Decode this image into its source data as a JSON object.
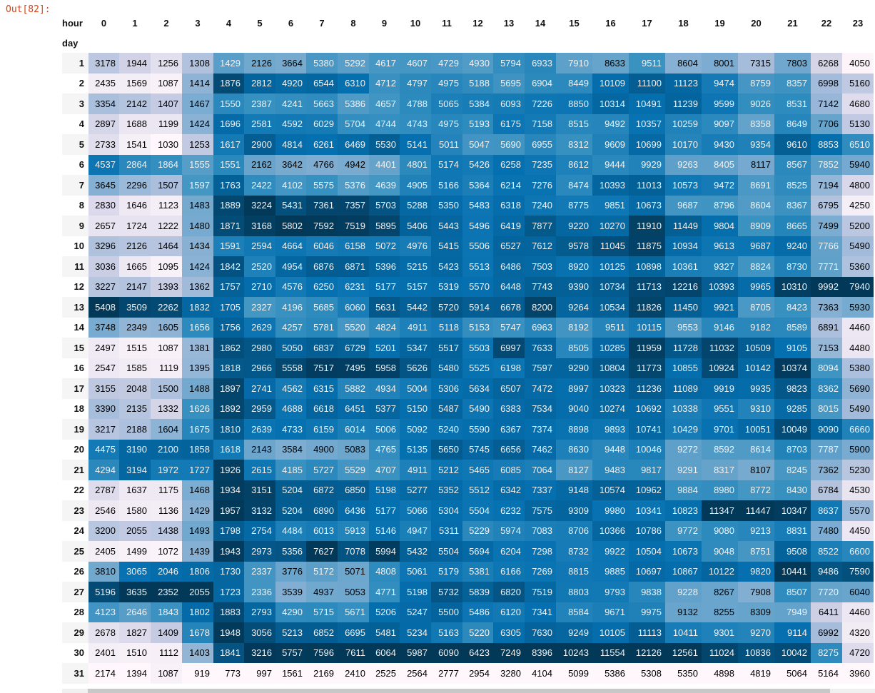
{
  "prompt": "Out[82]:",
  "columns_name": "hour",
  "index_name": "day",
  "columns": [
    "0",
    "1",
    "2",
    "3",
    "4",
    "5",
    "6",
    "7",
    "8",
    "9",
    "10",
    "11",
    "12",
    "13",
    "14",
    "15",
    "16",
    "17",
    "18",
    "19",
    "20",
    "21",
    "22",
    "23"
  ],
  "rows": [
    {
      "day": "1",
      "values": [
        3178,
        1944,
        1256,
        1308,
        1429,
        2126,
        3664,
        5380,
        5292,
        4617,
        4607,
        4729,
        4930,
        5794,
        6933,
        7910,
        8633,
        9511,
        8604,
        8001,
        7315,
        7803,
        6268,
        4050
      ]
    },
    {
      "day": "2",
      "values": [
        2435,
        1569,
        1087,
        1414,
        1876,
        2812,
        4920,
        6544,
        6310,
        4712,
        4797,
        4975,
        5188,
        5695,
        6904,
        8449,
        10109,
        11100,
        11123,
        9474,
        8759,
        8357,
        6998,
        5160
      ]
    },
    {
      "day": "3",
      "values": [
        3354,
        2142,
        1407,
        1467,
        1550,
        2387,
        4241,
        5663,
        5386,
        4657,
        4788,
        5065,
        5384,
        6093,
        7226,
        8850,
        10314,
        10491,
        11239,
        9599,
        9026,
        8531,
        7142,
        4680
      ]
    },
    {
      "day": "4",
      "values": [
        2897,
        1688,
        1199,
        1424,
        1696,
        2581,
        4592,
        6029,
        5704,
        4744,
        4743,
        4975,
        5193,
        6175,
        7158,
        8515,
        9492,
        10357,
        10259,
        9097,
        8358,
        8649,
        7706,
        5130
      ]
    },
    {
      "day": "5",
      "values": [
        2733,
        1541,
        1030,
        1253,
        1617,
        2900,
        4814,
        6261,
        6469,
        5530,
        5141,
        5011,
        5047,
        5690,
        6955,
        8312,
        9609,
        10699,
        10170,
        9430,
        9354,
        9610,
        8853,
        6510
      ]
    },
    {
      "day": "6",
      "values": [
        4537,
        2864,
        1864,
        1555,
        1551,
        2162,
        3642,
        4766,
        4942,
        4401,
        4801,
        5174,
        5426,
        6258,
        7235,
        8612,
        9444,
        9929,
        9263,
        8405,
        8117,
        8567,
        7852,
        5940
      ]
    },
    {
      "day": "7",
      "values": [
        3645,
        2296,
        1507,
        1597,
        1763,
        2422,
        4102,
        5575,
        5376,
        4639,
        4905,
        5166,
        5364,
        6214,
        7276,
        8474,
        10393,
        11013,
        10573,
        9472,
        8691,
        8525,
        7194,
        4800
      ]
    },
    {
      "day": "8",
      "values": [
        2830,
        1646,
        1123,
        1483,
        1889,
        3224,
        5431,
        7361,
        7357,
        5703,
        5288,
        5350,
        5483,
        6318,
        7240,
        8775,
        9851,
        10673,
        9687,
        8796,
        8604,
        8367,
        6795,
        4250
      ]
    },
    {
      "day": "9",
      "values": [
        2657,
        1724,
        1222,
        1480,
        1871,
        3168,
        5802,
        7592,
        7519,
        5895,
        5406,
        5443,
        5496,
        6419,
        7877,
        9220,
        10270,
        11910,
        11449,
        9804,
        8909,
        8665,
        7499,
        5200
      ]
    },
    {
      "day": "10",
      "values": [
        3296,
        2126,
        1464,
        1434,
        1591,
        2594,
        4664,
        6046,
        6158,
        5072,
        4976,
        5415,
        5506,
        6527,
        7612,
        9578,
        11045,
        11875,
        10934,
        9613,
        9687,
        9240,
        7766,
        5490
      ]
    },
    {
      "day": "11",
      "values": [
        3036,
        1665,
        1095,
        1424,
        1842,
        2520,
        4954,
        6876,
        6871,
        5396,
        5215,
        5423,
        5513,
        6486,
        7503,
        8920,
        10125,
        10898,
        10361,
        9327,
        8824,
        8730,
        7771,
        5360
      ]
    },
    {
      "day": "12",
      "values": [
        3227,
        2147,
        1393,
        1362,
        1757,
        2710,
        4576,
        6250,
        6231,
        5177,
        5157,
        5319,
        5570,
        6448,
        7743,
        9390,
        10734,
        11713,
        12216,
        10393,
        9965,
        10310,
        9992,
        7940
      ]
    },
    {
      "day": "13",
      "values": [
        5408,
        3509,
        2262,
        1832,
        1705,
        2327,
        4196,
        5685,
        6060,
        5631,
        5442,
        5720,
        5914,
        6678,
        8200,
        9264,
        10534,
        11826,
        11450,
        9921,
        8705,
        8423,
        7363,
        5930
      ]
    },
    {
      "day": "14",
      "values": [
        3748,
        2349,
        1605,
        1656,
        1756,
        2629,
        4257,
        5781,
        5520,
        4824,
        4911,
        5118,
        5153,
        5747,
        6963,
        8192,
        9511,
        10115,
        9553,
        9146,
        9182,
        8589,
        6891,
        4460
      ]
    },
    {
      "day": "15",
      "values": [
        2497,
        1515,
        1087,
        1381,
        1862,
        2980,
        5050,
        6837,
        6729,
        5201,
        5347,
        5517,
        5503,
        6997,
        7633,
        8505,
        10285,
        11959,
        11728,
        11032,
        10509,
        9105,
        7153,
        4480
      ]
    },
    {
      "day": "16",
      "values": [
        2547,
        1585,
        1119,
        1395,
        1818,
        2966,
        5558,
        7517,
        7495,
        5958,
        5626,
        5480,
        5525,
        6198,
        7597,
        9290,
        10804,
        11773,
        10855,
        10924,
        10142,
        10374,
        8094,
        5380
      ]
    },
    {
      "day": "17",
      "values": [
        3155,
        2048,
        1500,
        1488,
        1897,
        2741,
        4562,
        6315,
        5882,
        4934,
        5004,
        5306,
        5634,
        6507,
        7472,
        8997,
        10323,
        11236,
        11089,
        9919,
        9935,
        9823,
        8362,
        5690
      ]
    },
    {
      "day": "18",
      "values": [
        3390,
        2135,
        1332,
        1626,
        1892,
        2959,
        4688,
        6618,
        6451,
        5377,
        5150,
        5487,
        5490,
        6383,
        7534,
        9040,
        10274,
        10692,
        10338,
        9551,
        9310,
        9285,
        8015,
        5490
      ]
    },
    {
      "day": "19",
      "values": [
        3217,
        2188,
        1604,
        1675,
        1810,
        2639,
        4733,
        6159,
        6014,
        5006,
        5092,
        5240,
        5590,
        6367,
        7374,
        8898,
        9893,
        10741,
        10429,
        9701,
        10051,
        10049,
        9090,
        6660
      ]
    },
    {
      "day": "20",
      "values": [
        4475,
        3190,
        2100,
        1858,
        1618,
        2143,
        3584,
        4900,
        5083,
        4765,
        5135,
        5650,
        5745,
        6656,
        7462,
        8630,
        9448,
        10046,
        9272,
        8592,
        8614,
        8703,
        7787,
        5900
      ]
    },
    {
      "day": "21",
      "values": [
        4294,
        3194,
        1972,
        1727,
        1926,
        2615,
        4185,
        5727,
        5529,
        4707,
        4911,
        5212,
        5465,
        6085,
        7064,
        8127,
        9483,
        9817,
        9291,
        8317,
        8107,
        8245,
        7362,
        5230
      ]
    },
    {
      "day": "22",
      "values": [
        2787,
        1637,
        1175,
        1468,
        1934,
        3151,
        5204,
        6872,
        6850,
        5198,
        5277,
        5352,
        5512,
        6342,
        7337,
        9148,
        10574,
        10962,
        9884,
        8980,
        8772,
        8430,
        6784,
        4530
      ]
    },
    {
      "day": "23",
      "values": [
        2546,
        1580,
        1136,
        1429,
        1957,
        3132,
        5204,
        6890,
        6436,
        5177,
        5066,
        5304,
        5504,
        6232,
        7575,
        9309,
        9980,
        10341,
        10823,
        11347,
        11447,
        10347,
        8637,
        5570
      ]
    },
    {
      "day": "24",
      "values": [
        3200,
        2055,
        1438,
        1493,
        1798,
        2754,
        4484,
        6013,
        5913,
        5146,
        4947,
        5311,
        5229,
        5974,
        7083,
        8706,
        10366,
        10786,
        9772,
        9080,
        9213,
        8831,
        7480,
        4450
      ]
    },
    {
      "day": "25",
      "values": [
        2405,
        1499,
        1072,
        1439,
        1943,
        2973,
        5356,
        7627,
        7078,
        5994,
        5432,
        5504,
        5694,
        6204,
        7298,
        8732,
        9922,
        10504,
        10673,
        9048,
        8751,
        9508,
        8522,
        6600
      ]
    },
    {
      "day": "26",
      "values": [
        3810,
        3065,
        2046,
        1806,
        1730,
        2337,
        3776,
        5172,
        5071,
        4808,
        5061,
        5179,
        5381,
        6166,
        7269,
        8815,
        9885,
        10697,
        10867,
        10122,
        9820,
        10441,
        9486,
        7590
      ]
    },
    {
      "day": "27",
      "values": [
        5196,
        3635,
        2352,
        2055,
        1723,
        2336,
        3539,
        4937,
        5053,
        4771,
        5198,
        5732,
        5839,
        6820,
        7519,
        8803,
        9793,
        9838,
        9228,
        8267,
        7908,
        8507,
        7720,
        6040
      ]
    },
    {
      "day": "28",
      "values": [
        4123,
        2646,
        1843,
        1802,
        1883,
        2793,
        4290,
        5715,
        5671,
        5206,
        5247,
        5500,
        5486,
        6120,
        7341,
        8584,
        9671,
        9975,
        9132,
        8255,
        8309,
        7949,
        6411,
        4460
      ]
    },
    {
      "day": "29",
      "values": [
        2678,
        1827,
        1409,
        1678,
        1948,
        3056,
        5213,
        6852,
        6695,
        5481,
        5234,
        5163,
        5220,
        6305,
        7630,
        9249,
        10105,
        11113,
        10411,
        9301,
        9270,
        9114,
        6992,
        4320
      ]
    },
    {
      "day": "30",
      "values": [
        2401,
        1510,
        1112,
        1403,
        1841,
        3216,
        5757,
        7596,
        7611,
        6064,
        5987,
        6090,
        6423,
        7249,
        8396,
        10243,
        11554,
        12126,
        12561,
        11024,
        10836,
        10042,
        8275,
        4720
      ]
    },
    {
      "day": "31",
      "values": [
        2174,
        1394,
        1087,
        919,
        773,
        997,
        1561,
        2169,
        2410,
        2525,
        2564,
        2777,
        2954,
        3280,
        4104,
        5099,
        5386,
        5308,
        5350,
        4898,
        4819,
        5064,
        5164,
        3960
      ]
    }
  ]
}
